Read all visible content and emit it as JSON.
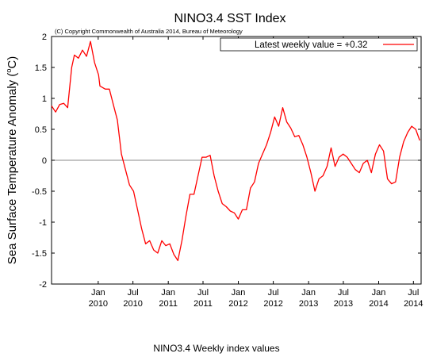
{
  "caption": "NINO3.4 Weekly index values",
  "chart_data": {
    "type": "line",
    "title": "NINO3.4 SST Index",
    "copyright": "(C) Copyright Commonwealth of Australia 2014, Bureau of Meteorology",
    "ylabel_main": "Sea Surface Temperature Anomaly (",
    "ylabel_sup": "o",
    "ylabel_tail": "C)",
    "xlabel": "",
    "ylim": [
      -2,
      2
    ],
    "xlim": [
      "2009-05-03",
      "2014-08-10"
    ],
    "yticks": [
      {
        "value": 2,
        "label": "2"
      },
      {
        "value": 1.5,
        "label": "1.5"
      },
      {
        "value": 1,
        "label": "1"
      },
      {
        "value": 0.5,
        "label": "0.5"
      },
      {
        "value": 0,
        "label": "0"
      },
      {
        "value": -0.5,
        "label": "-0.5"
      },
      {
        "value": -1,
        "label": "-1"
      },
      {
        "value": -1.5,
        "label": "-1.5"
      },
      {
        "value": -2,
        "label": "-2"
      }
    ],
    "xticks": [
      {
        "date": "2010-01-01",
        "month": "Jan",
        "year": "2010"
      },
      {
        "date": "2010-07-01",
        "month": "Jul",
        "year": "2010"
      },
      {
        "date": "2011-01-01",
        "month": "Jan",
        "year": "2011"
      },
      {
        "date": "2011-07-01",
        "month": "Jul",
        "year": "2011"
      },
      {
        "date": "2012-01-01",
        "month": "Jan",
        "year": "2012"
      },
      {
        "date": "2012-07-01",
        "month": "Jul",
        "year": "2012"
      },
      {
        "date": "2013-01-01",
        "month": "Jan",
        "year": "2013"
      },
      {
        "date": "2013-07-01",
        "month": "Jul",
        "year": "2013"
      },
      {
        "date": "2014-01-01",
        "month": "Jan",
        "year": "2014"
      },
      {
        "date": "2014-07-01",
        "month": "Jul",
        "year": "2014"
      }
    ],
    "grid": false,
    "zero_line": true,
    "legend": {
      "placement": "top-right",
      "label": "Latest weekly value = +0.32"
    },
    "series": [
      {
        "color": "#ff0000",
        "x": [
          "2009-05-03",
          "2009-05-24",
          "2009-06-14",
          "2009-07-05",
          "2009-07-26",
          "2009-08-16",
          "2009-08-30",
          "2009-09-20",
          "2009-10-11",
          "2009-11-01",
          "2009-11-22",
          "2009-12-13",
          "2010-01-03",
          "2010-01-10",
          "2010-02-07",
          "2010-02-28",
          "2010-03-21",
          "2010-04-11",
          "2010-05-02",
          "2010-05-23",
          "2010-06-13",
          "2010-07-04",
          "2010-07-25",
          "2010-08-15",
          "2010-09-05",
          "2010-09-26",
          "2010-10-17",
          "2010-11-07",
          "2010-11-28",
          "2010-12-19",
          "2011-01-09",
          "2011-01-30",
          "2011-02-20",
          "2011-03-13",
          "2011-04-03",
          "2011-04-24",
          "2011-05-15",
          "2011-06-05",
          "2011-06-26",
          "2011-07-17",
          "2011-08-07",
          "2011-08-28",
          "2011-09-18",
          "2011-10-09",
          "2011-10-30",
          "2011-11-20",
          "2011-12-11",
          "2012-01-01",
          "2012-01-22",
          "2012-02-12",
          "2012-03-04",
          "2012-03-25",
          "2012-04-15",
          "2012-05-06",
          "2012-05-27",
          "2012-06-17",
          "2012-07-08",
          "2012-07-29",
          "2012-08-19",
          "2012-09-09",
          "2012-09-30",
          "2012-10-21",
          "2012-11-11",
          "2012-12-02",
          "2012-12-23",
          "2013-01-13",
          "2013-02-03",
          "2013-02-24",
          "2013-03-17",
          "2013-04-07",
          "2013-04-28",
          "2013-05-19",
          "2013-06-09",
          "2013-06-30",
          "2013-07-21",
          "2013-08-11",
          "2013-09-01",
          "2013-09-22",
          "2013-10-13",
          "2013-11-03",
          "2013-11-24",
          "2013-12-15",
          "2014-01-05",
          "2014-01-26",
          "2014-02-16",
          "2014-03-09",
          "2014-03-30",
          "2014-04-20",
          "2014-05-11",
          "2014-06-01",
          "2014-06-22",
          "2014-07-13",
          "2014-08-03"
        ],
        "values": [
          0.88,
          0.78,
          0.9,
          0.92,
          0.85,
          1.5,
          1.7,
          1.65,
          1.78,
          1.68,
          1.92,
          1.58,
          1.38,
          1.2,
          1.15,
          1.15,
          0.9,
          0.65,
          0.1,
          -0.15,
          -0.4,
          -0.5,
          -0.8,
          -1.1,
          -1.35,
          -1.3,
          -1.45,
          -1.5,
          -1.3,
          -1.38,
          -1.35,
          -1.52,
          -1.62,
          -1.3,
          -0.9,
          -0.55,
          -0.55,
          -0.25,
          0.05,
          0.05,
          0.08,
          -0.25,
          -0.5,
          -0.7,
          -0.75,
          -0.82,
          -0.85,
          -0.95,
          -0.8,
          -0.8,
          -0.45,
          -0.35,
          -0.05,
          0.1,
          0.25,
          0.45,
          0.7,
          0.55,
          0.85,
          0.62,
          0.52,
          0.38,
          0.4,
          0.25,
          0.05,
          -0.2,
          -0.5,
          -0.3,
          -0.25,
          -0.1,
          0.2,
          -0.1,
          0.05,
          0.1,
          0.05,
          -0.05,
          -0.15,
          -0.2,
          -0.05,
          0.0,
          -0.2,
          0.1,
          0.25,
          0.15,
          -0.3,
          -0.38,
          -0.35,
          0.05,
          0.3,
          0.45,
          0.55,
          0.5,
          0.32
        ]
      }
    ]
  }
}
